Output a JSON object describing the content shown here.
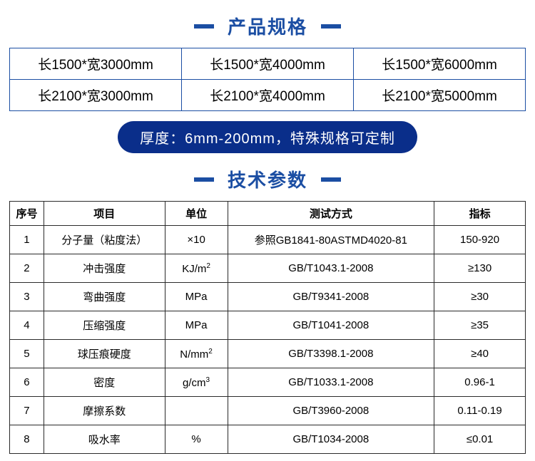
{
  "colors": {
    "brand_blue": "#1b4ea3",
    "dash_blue": "#1b4ea3",
    "pill_bg": "#0a2e8a",
    "pill_text": "#ffffff",
    "param_border": "#2a2a2a",
    "text": "#000000"
  },
  "spec_section": {
    "title": "产品规格",
    "dash_color": "#1b4ea3",
    "title_color": "#1b4ea3",
    "border_color": "#1b4ea3",
    "cells": [
      [
        "长1500*宽3000mm",
        "长1500*宽4000mm",
        "长1500*宽6000mm"
      ],
      [
        "长2100*宽3000mm",
        "长2100*宽4000mm",
        "长2100*宽5000mm"
      ]
    ],
    "pill_text": "厚度：6mm-200mm，特殊规格可定制",
    "pill_bg": "#0a2e8a",
    "pill_color": "#ffffff"
  },
  "param_section": {
    "title": "技术参数",
    "dash_color": "#1b4ea3",
    "title_color": "#1b4ea3",
    "border_color": "#2a2a2a",
    "columns": [
      "序号",
      "项目",
      "单位",
      "测试方式",
      "指标"
    ],
    "rows": [
      {
        "no": "1",
        "item": "分子量（粘度法）",
        "unit": "×10",
        "unit_sup": "",
        "test": "参照GB1841-80ASTMD4020-81",
        "val": "150-920"
      },
      {
        "no": "2",
        "item": "冲击强度",
        "unit": "KJ/m",
        "unit_sup": "2",
        "test": "GB/T1043.1-2008",
        "val": "≥130"
      },
      {
        "no": "3",
        "item": "弯曲强度",
        "unit": "MPa",
        "unit_sup": "",
        "test": "GB/T9341-2008",
        "val": "≥30"
      },
      {
        "no": "4",
        "item": "压缩强度",
        "unit": "MPa",
        "unit_sup": "",
        "test": "GB/T1041-2008",
        "val": "≥35"
      },
      {
        "no": "5",
        "item": "球压痕硬度",
        "unit": "N/mm",
        "unit_sup": "2",
        "test": "GB/T3398.1-2008",
        "val": "≥40"
      },
      {
        "no": "6",
        "item": "密度",
        "unit": "g/cm",
        "unit_sup": "3",
        "test": "GB/T1033.1-2008",
        "val": "0.96-1"
      },
      {
        "no": "7",
        "item": "摩擦系数",
        "unit": "",
        "unit_sup": "",
        "test": "GB/T3960-2008",
        "val": "0.11-0.19"
      },
      {
        "no": "8",
        "item": "吸水率",
        "unit": "%",
        "unit_sup": "",
        "test": "GB/T1034-2008",
        "val": "≤0.01"
      }
    ]
  }
}
